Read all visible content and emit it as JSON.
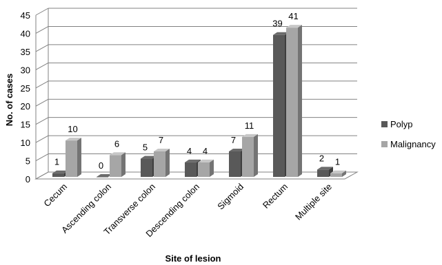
{
  "chart_data": {
    "type": "bar",
    "xlabel": "Site of lesion",
    "ylabel": "No. of cases",
    "ylim": [
      0,
      45
    ],
    "yticks": [
      0,
      5,
      10,
      15,
      20,
      25,
      30,
      35,
      40,
      45
    ],
    "categories": [
      "Cecum",
      "Ascending colon",
      "Transverse colon",
      "Descending colon",
      "Sigmoid",
      "Rectum",
      "Multiple site"
    ],
    "series": [
      {
        "name": "Polyp",
        "values": [
          1,
          0,
          5,
          4,
          7,
          39,
          2
        ],
        "color": "#595959"
      },
      {
        "name": "Malignancy",
        "values": [
          10,
          6,
          7,
          4,
          11,
          41,
          1
        ],
        "color": "#a6a6a6"
      }
    ],
    "style": "3d-clustered-column",
    "grid": true,
    "legend_position": "right"
  }
}
